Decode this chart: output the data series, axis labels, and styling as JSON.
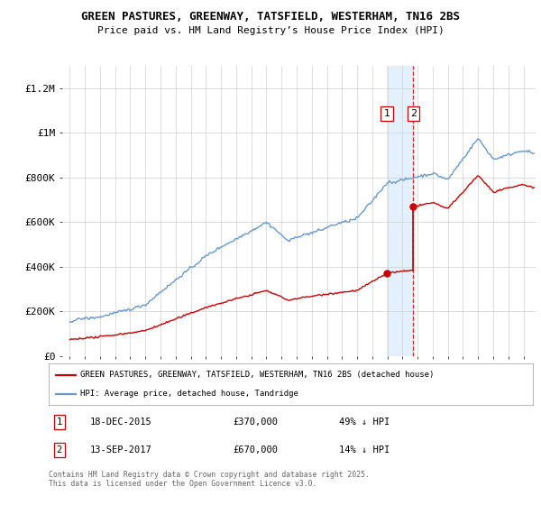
{
  "title_line1": "GREEN PASTURES, GREENWAY, TATSFIELD, WESTERHAM, TN16 2BS",
  "title_line2": "Price paid vs. HM Land Registry’s House Price Index (HPI)",
  "ylabel_ticks": [
    "£0",
    "£200K",
    "£400K",
    "£600K",
    "£800K",
    "£1M",
    "£1.2M"
  ],
  "ytick_values": [
    0,
    200000,
    400000,
    600000,
    800000,
    1000000,
    1200000
  ],
  "ylim": [
    0,
    1300000
  ],
  "xlim_start": 1994.5,
  "xlim_end": 2025.8,
  "xtick_years": [
    1995,
    1996,
    1997,
    1998,
    1999,
    2000,
    2001,
    2002,
    2003,
    2004,
    2005,
    2006,
    2007,
    2008,
    2009,
    2010,
    2011,
    2012,
    2013,
    2014,
    2015,
    2016,
    2017,
    2018,
    2019,
    2020,
    2021,
    2022,
    2023,
    2024,
    2025
  ],
  "sale1_date": 2015.96,
  "sale1_price": 370000,
  "sale2_date": 2017.71,
  "sale2_price": 670000,
  "legend_line1": "GREEN PASTURES, GREENWAY, TATSFIELD, WESTERHAM, TN16 2BS (detached house)",
  "legend_line2": "HPI: Average price, detached house, Tandridge",
  "red_color": "#cc0000",
  "blue_color": "#6699cc",
  "shaded_color": "#ddeeff",
  "footnote": "Contains HM Land Registry data © Crown copyright and database right 2025.\nThis data is licensed under the Open Government Licence v3.0.",
  "background_color": "#ffffff"
}
